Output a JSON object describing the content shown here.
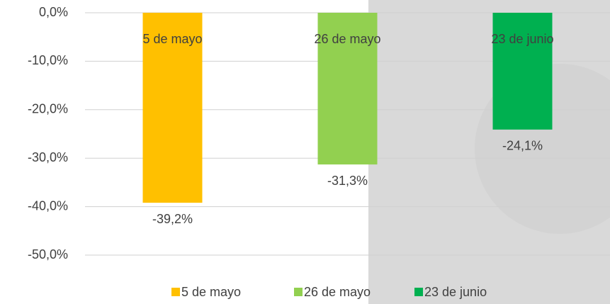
{
  "chart_data": {
    "type": "bar",
    "categories": [
      "5 de mayo",
      "26 de mayo",
      "23 de junio"
    ],
    "values": [
      -39.2,
      -31.3,
      -24.1
    ],
    "value_labels": [
      "-39,2%",
      "-31,3%",
      "-24,1%"
    ],
    "colors": [
      "#ffc000",
      "#92d050",
      "#00b050"
    ],
    "ylim": [
      -50,
      0
    ],
    "yticks": [
      {
        "value": -50,
        "label": "-50,0%"
      },
      {
        "value": -40,
        "label": "-40,0%"
      },
      {
        "value": -30,
        "label": "-30,0%"
      },
      {
        "value": -20,
        "label": "-20,0%"
      },
      {
        "value": -10,
        "label": "-10,0%"
      },
      {
        "value": 0,
        "label": "0,0%"
      }
    ],
    "grid": true,
    "legend": "bottom"
  }
}
